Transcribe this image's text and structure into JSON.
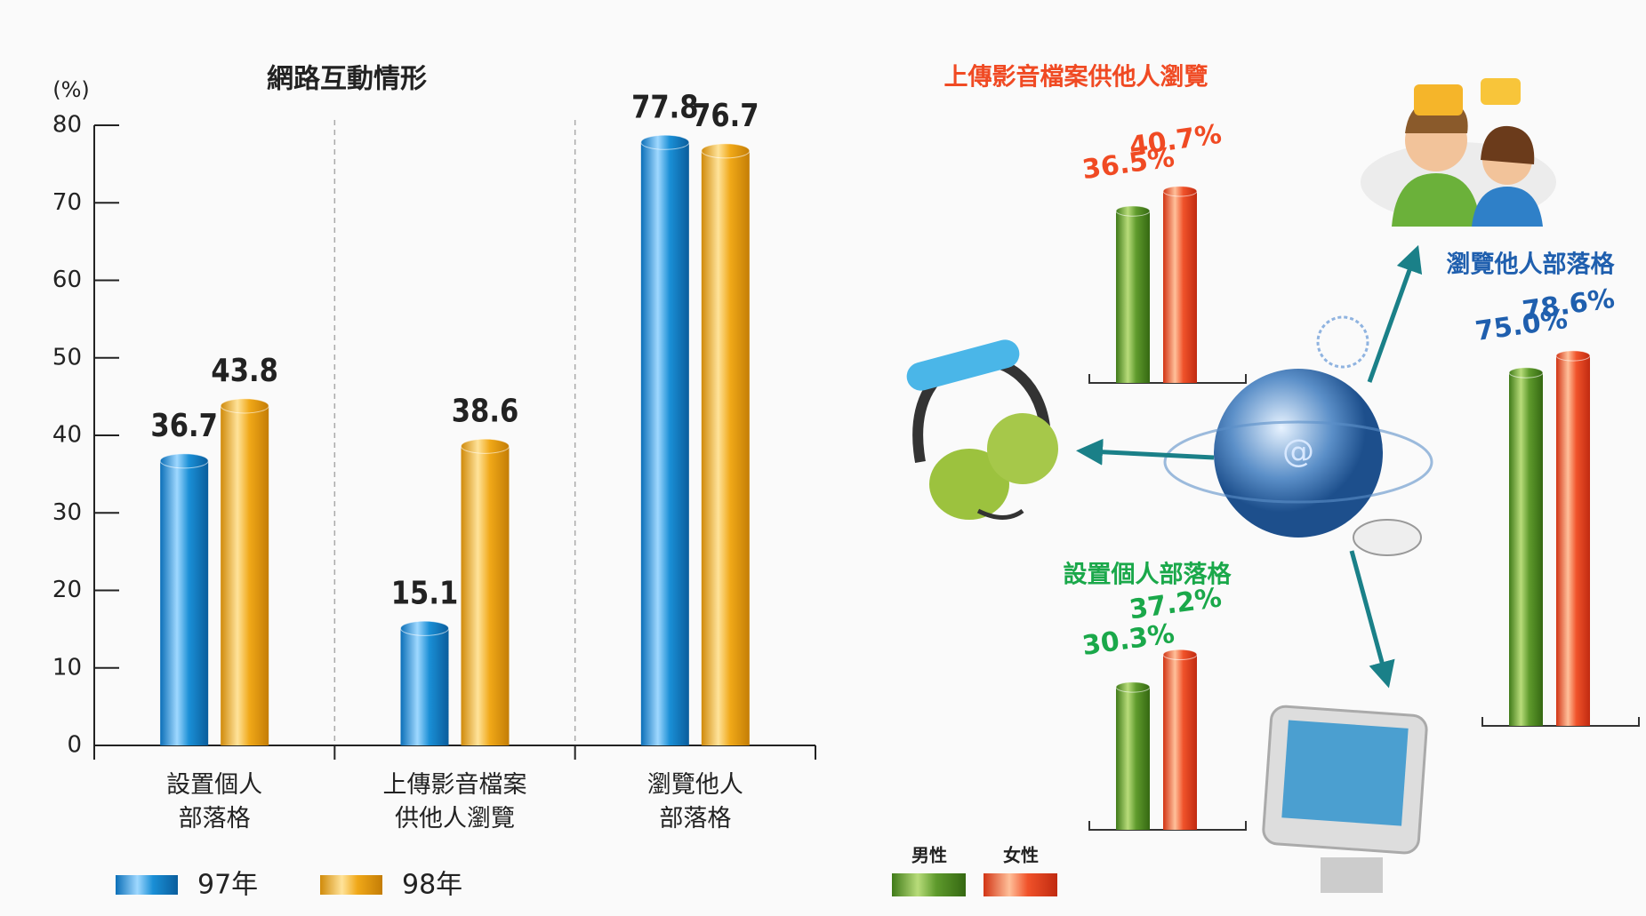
{
  "chart_data": [
    {
      "type": "bar",
      "title": "網路互動情形",
      "y_unit": "(%)",
      "categories": [
        "設置個人\n部落格",
        "上傳影音檔案\n供他人瀏覽",
        "瀏覽他人\n部落格"
      ],
      "series": [
        {
          "name": "97年",
          "color": "#1a8fd6",
          "values": [
            36.7,
            15.1,
            77.8
          ]
        },
        {
          "name": "98年",
          "color": "#f0a818",
          "values": [
            43.8,
            38.6,
            76.7
          ]
        }
      ],
      "ylim": [
        0,
        80
      ],
      "yticks": [
        0,
        10,
        20,
        30,
        40,
        50,
        60,
        70,
        80
      ]
    },
    {
      "type": "bar",
      "categories": [
        "上傳影音檔案供他人瀏覽",
        "瀏覽他人部落格",
        "設置個人部落格"
      ],
      "category_colors": [
        "#f04a23",
        "#1f5fae",
        "#1aa84a"
      ],
      "series": [
        {
          "name": "男性",
          "color": "#5e9a2c",
          "values": [
            36.5,
            75.0,
            30.3
          ],
          "value_labels": [
            "36.5%",
            "75.0%",
            "30.3%"
          ]
        },
        {
          "name": "女性",
          "color": "#f0522a",
          "values": [
            40.7,
            78.6,
            37.2
          ],
          "value_labels": [
            "40.7%",
            "78.6%",
            "37.2%"
          ]
        }
      ]
    }
  ]
}
